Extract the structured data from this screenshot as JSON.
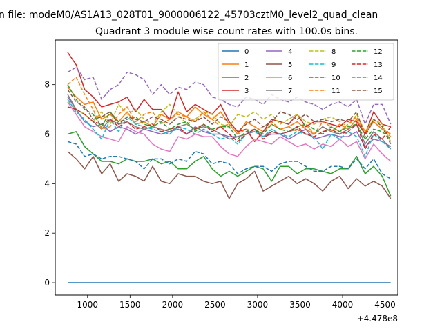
{
  "figure": {
    "suptitle": "n file: modeM0/AS1A13_028T01_9000006122_45703cztM0_level2_quad_clean",
    "offset_label": "+4.478e8"
  },
  "chart_data": {
    "type": "line",
    "title": "Quadrant 3 module wise count rates with 100.0s bins.",
    "xlabel": "",
    "ylabel": "",
    "xlim": [
      620,
      4650
    ],
    "ylim": [
      -0.5,
      9.8
    ],
    "x_offset": 447800000,
    "xticks": [
      1000,
      1500,
      2000,
      2500,
      3000,
      3500,
      4000,
      4500
    ],
    "yticks": [
      0,
      2,
      4,
      6,
      8
    ],
    "grid": false,
    "legend_position": "upper-right",
    "legend_columns": 4,
    "x": [
      766,
      866,
      966,
      1066,
      1166,
      1266,
      1366,
      1466,
      1566,
      1666,
      1766,
      1866,
      1966,
      2066,
      2166,
      2266,
      2366,
      2466,
      2566,
      2666,
      2766,
      2866,
      2966,
      3066,
      3166,
      3266,
      3366,
      3466,
      3566,
      3666,
      3766,
      3866,
      3966,
      4066,
      4166,
      4266,
      4366,
      4466,
      4566
    ],
    "series": [
      {
        "name": "0",
        "color": "#1f77b4",
        "dash": "solid",
        "values": [
          0,
          0,
          0,
          0,
          0,
          0,
          0,
          0,
          0,
          0,
          0,
          0,
          0,
          0,
          0,
          0,
          0,
          0,
          0,
          0,
          0,
          0,
          0,
          0,
          0,
          0,
          0,
          0,
          0,
          0,
          0,
          0,
          0,
          0,
          0,
          0,
          0,
          0,
          0
        ]
      },
      {
        "name": "1",
        "color": "#ff7f0e",
        "dash": "solid",
        "values": [
          7.9,
          7.5,
          7.2,
          7.3,
          6.6,
          6.8,
          6.5,
          6.9,
          6.4,
          6.5,
          6.3,
          6.8,
          6.6,
          6.9,
          6.7,
          7.1,
          6.8,
          6.6,
          6.9,
          6.4,
          6.0,
          6.5,
          6.3,
          6.1,
          6.4,
          6.2,
          6.3,
          6.5,
          6.2,
          6.0,
          6.3,
          6.1,
          6.4,
          6.2,
          6.6,
          6.0,
          6.5,
          6.2,
          6.0
        ]
      },
      {
        "name": "2",
        "color": "#2ca02c",
        "dash": "solid",
        "values": [
          6.0,
          6.1,
          5.5,
          5.2,
          4.9,
          4.9,
          4.8,
          5.0,
          4.9,
          4.9,
          5.0,
          4.8,
          4.9,
          4.6,
          4.6,
          4.9,
          5.1,
          4.6,
          4.3,
          4.5,
          4.3,
          4.5,
          4.7,
          4.6,
          4.1,
          4.7,
          4.7,
          4.4,
          4.6,
          4.6,
          4.5,
          4.4,
          4.6,
          4.6,
          5.1,
          4.4,
          4.7,
          4.3,
          3.5
        ]
      },
      {
        "name": "3",
        "color": "#d62728",
        "dash": "solid",
        "values": [
          9.3,
          8.8,
          7.8,
          7.5,
          7.1,
          7.2,
          7.3,
          7.5,
          6.9,
          7.4,
          7.0,
          7.0,
          6.6,
          7.7,
          6.9,
          7.2,
          7.0,
          6.8,
          7.2,
          6.5,
          6.1,
          6.2,
          5.7,
          6.1,
          6.6,
          6.5,
          6.4,
          6.8,
          6.3,
          6.5,
          6.5,
          6.4,
          6.3,
          6.6,
          6.5,
          6.0,
          6.9,
          6.4,
          6.3
        ]
      },
      {
        "name": "4",
        "color": "#9467bd",
        "dash": "solid",
        "values": [
          7.5,
          7.0,
          6.5,
          6.3,
          6.4,
          6.1,
          6.3,
          6.2,
          6.0,
          6.2,
          6.1,
          6.0,
          6.1,
          6.2,
          6.0,
          6.3,
          6.1,
          6.0,
          6.0,
          5.9,
          5.9,
          6.0,
          6.1,
          5.9,
          6.0,
          6.0,
          5.8,
          6.0,
          6.2,
          5.8,
          5.9,
          6.0,
          5.9,
          5.9,
          6.1,
          5.5,
          5.8,
          5.7,
          5.5
        ]
      },
      {
        "name": "5",
        "color": "#8c564b",
        "dash": "solid",
        "values": [
          5.3,
          5.0,
          4.6,
          5.1,
          4.4,
          4.8,
          4.1,
          4.4,
          4.3,
          4.1,
          4.7,
          4.1,
          4.0,
          4.4,
          4.3,
          4.3,
          4.1,
          4.0,
          4.1,
          3.4,
          4.0,
          4.2,
          4.5,
          3.7,
          3.9,
          4.1,
          4.3,
          4.0,
          4.2,
          4.0,
          3.7,
          4.1,
          4.3,
          3.8,
          4.2,
          3.9,
          4.1,
          3.9,
          3.4
        ]
      },
      {
        "name": "6",
        "color": "#e377c2",
        "dash": "solid",
        "values": [
          7.3,
          6.8,
          6.3,
          6.1,
          5.9,
          5.8,
          5.7,
          6.3,
          6.1,
          6.0,
          5.6,
          5.4,
          5.3,
          5.9,
          5.8,
          6.0,
          5.9,
          5.9,
          5.5,
          5.2,
          5.1,
          5.5,
          5.8,
          5.7,
          5.6,
          5.9,
          5.7,
          5.5,
          5.6,
          5.4,
          5.6,
          5.5,
          5.8,
          5.5,
          5.7,
          5.0,
          5.6,
          5.2,
          4.9
        ]
      },
      {
        "name": "7",
        "color": "#7f7f7f",
        "dash": "solid",
        "values": [
          7.6,
          7.0,
          6.8,
          6.5,
          6.2,
          6.6,
          6.4,
          6.5,
          6.3,
          6.2,
          6.3,
          6.2,
          6.1,
          6.3,
          6.4,
          6.2,
          6.3,
          6.2,
          6.0,
          5.8,
          5.9,
          6.0,
          6.2,
          5.9,
          6.1,
          6.0,
          6.1,
          6.2,
          6.0,
          6.0,
          6.3,
          6.1,
          6.0,
          6.2,
          6.4,
          5.6,
          6.1,
          5.8,
          5.4
        ]
      },
      {
        "name": "8",
        "color": "#bcbd22",
        "dash": "dashed",
        "values": [
          7.3,
          7.0,
          6.8,
          6.5,
          6.9,
          6.4,
          7.2,
          6.8,
          7.0,
          6.6,
          6.4,
          6.9,
          7.2,
          6.8,
          6.4,
          6.6,
          6.9,
          6.8,
          6.4,
          6.3,
          6.8,
          6.7,
          6.9,
          6.6,
          6.8,
          6.4,
          6.6,
          6.8,
          6.5,
          6.4,
          6.6,
          6.7,
          6.5,
          6.3,
          6.8,
          6.1,
          6.6,
          6.4,
          5.7
        ]
      },
      {
        "name": "9",
        "color": "#17becf",
        "dash": "dashed",
        "values": [
          7.4,
          6.9,
          6.6,
          6.2,
          5.8,
          6.6,
          6.1,
          6.7,
          6.4,
          6.3,
          6.2,
          6.1,
          6.0,
          6.3,
          6.2,
          6.0,
          6.2,
          6.0,
          5.8,
          5.9,
          5.6,
          6.0,
          6.1,
          5.9,
          6.2,
          6.0,
          5.9,
          6.1,
          6.0,
          5.9,
          5.4,
          6.0,
          5.8,
          6.1,
          5.9,
          5.1,
          6.0,
          5.7,
          5.4
        ]
      },
      {
        "name": "10",
        "color": "#1f77b4",
        "dash": "dashed",
        "values": [
          5.7,
          5.6,
          5.1,
          5.2,
          5.0,
          5.1,
          5.1,
          5.0,
          4.9,
          4.6,
          5.0,
          5.0,
          4.8,
          5.0,
          4.9,
          5.3,
          5.2,
          4.8,
          4.9,
          4.8,
          4.4,
          4.6,
          4.7,
          4.7,
          4.5,
          4.8,
          4.9,
          4.9,
          4.7,
          4.5,
          4.5,
          4.7,
          4.7,
          4.6,
          5.0,
          4.6,
          5.0,
          4.4,
          4.2
        ]
      },
      {
        "name": "11",
        "color": "#ff7f0e",
        "dash": "dashed",
        "values": [
          8.0,
          8.3,
          7.6,
          7.0,
          6.2,
          6.3,
          6.8,
          7.1,
          6.5,
          6.8,
          6.9,
          6.4,
          6.6,
          6.8,
          6.7,
          6.5,
          6.9,
          6.6,
          6.3,
          6.4,
          6.0,
          6.2,
          6.1,
          6.3,
          6.5,
          6.2,
          6.3,
          6.1,
          6.4,
          6.0,
          6.5,
          6.3,
          6.1,
          6.4,
          6.7,
          6.1,
          6.5,
          6.2,
          5.9
        ]
      },
      {
        "name": "12",
        "color": "#2ca02c",
        "dash": "dashed",
        "values": [
          8.0,
          7.4,
          7.0,
          6.8,
          6.3,
          6.9,
          6.5,
          6.6,
          6.7,
          6.4,
          6.3,
          6.5,
          6.2,
          6.4,
          6.5,
          6.1,
          6.4,
          6.2,
          6.3,
          6.3,
          5.8,
          6.1,
          6.2,
          6.0,
          6.4,
          6.2,
          6.1,
          6.3,
          6.4,
          6.2,
          6.0,
          6.3,
          6.1,
          6.3,
          6.4,
          5.8,
          6.2,
          6.1,
          5.8
        ]
      },
      {
        "name": "13",
        "color": "#d62728",
        "dash": "dashed",
        "values": [
          7.1,
          7.0,
          6.8,
          6.5,
          6.4,
          6.6,
          6.3,
          6.5,
          6.2,
          6.3,
          6.4,
          6.1,
          6.2,
          6.3,
          6.0,
          6.2,
          6.4,
          6.1,
          6.3,
          6.0,
          5.7,
          6.0,
          6.2,
          5.8,
          6.1,
          6.0,
          6.1,
          6.3,
          6.0,
          5.9,
          6.1,
          6.2,
          6.0,
          6.1,
          6.4,
          5.4,
          6.0,
          5.8,
          6.3
        ]
      },
      {
        "name": "14",
        "color": "#9467bd",
        "dash": "dashed",
        "values": [
          8.5,
          8.7,
          8.2,
          8.3,
          7.4,
          7.8,
          8.0,
          8.5,
          8.4,
          8.2,
          7.6,
          8.0,
          7.6,
          7.9,
          7.8,
          8.1,
          8.0,
          7.5,
          7.4,
          7.2,
          7.1,
          7.5,
          7.4,
          7.2,
          7.6,
          7.4,
          7.3,
          7.5,
          7.3,
          7.2,
          7.0,
          7.2,
          7.3,
          7.1,
          7.4,
          6.4,
          7.2,
          7.2,
          6.4
        ]
      },
      {
        "name": "15",
        "color": "#8c564b",
        "dash": "dashed",
        "values": [
          7.8,
          7.3,
          7.1,
          6.6,
          6.7,
          6.9,
          6.4,
          6.7,
          6.6,
          6.5,
          6.7,
          6.6,
          6.4,
          6.7,
          6.6,
          6.5,
          6.7,
          6.4,
          6.7,
          6.5,
          6.1,
          6.4,
          6.6,
          6.3,
          6.5,
          6.9,
          6.8,
          6.6,
          6.8,
          6.5,
          6.6,
          6.5,
          6.6,
          6.5,
          6.9,
          5.9,
          6.6,
          6.3,
          5.6
        ]
      }
    ]
  }
}
